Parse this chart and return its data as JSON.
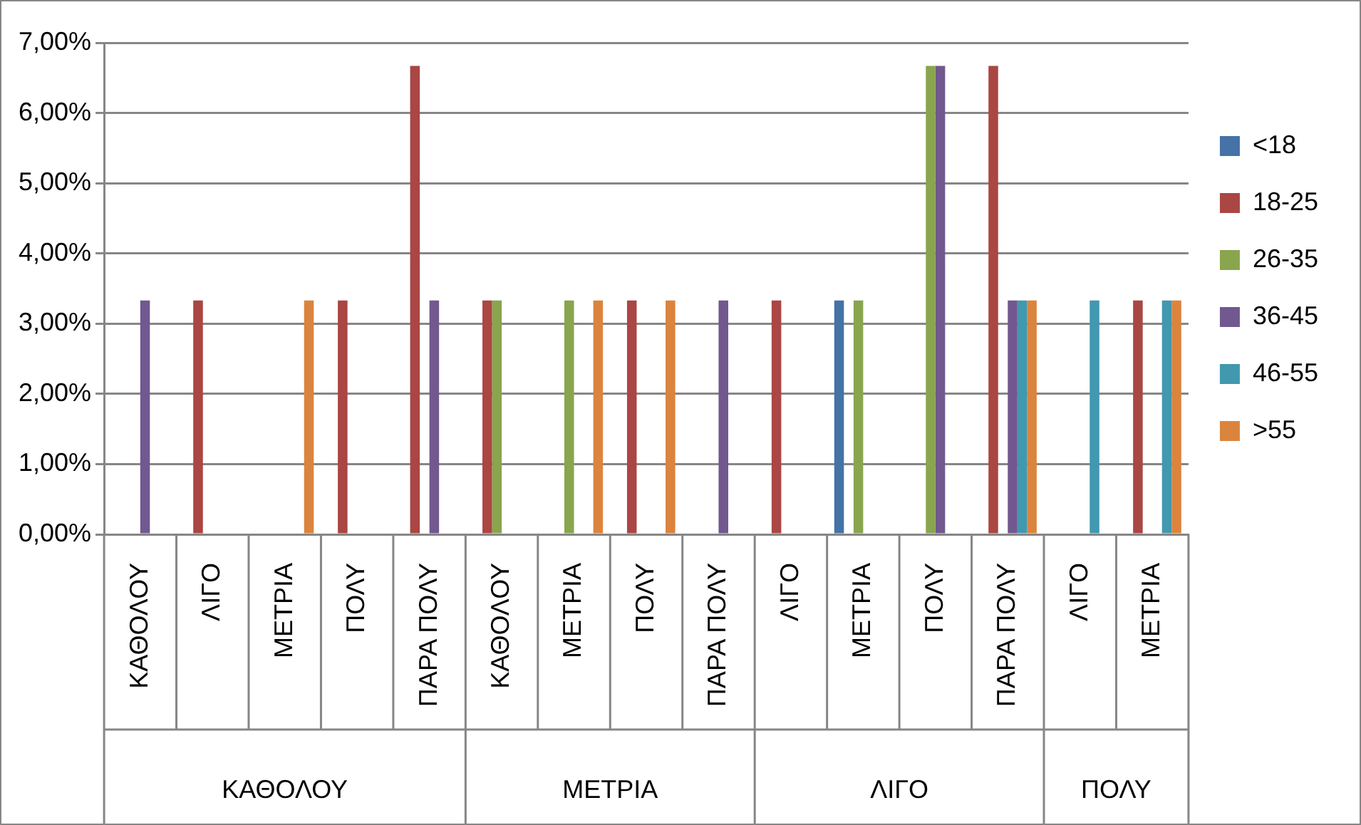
{
  "chart_data": {
    "type": "bar",
    "categories": [
      "ΚΑΘΟΛΟΥ",
      "ΛΙΓΟ",
      "ΜΕΤΡΙΑ",
      "ΠΟΛΥ",
      "ΠΑΡΑ ΠΟΛΥ",
      "ΚΑΘΟΛΟΥ",
      "ΜΕΤΡΙΑ",
      "ΠΟΛΥ",
      "ΠΑΡΑ ΠΟΛΥ",
      "ΛΙΓΟ",
      "ΜΕΤΡΙΑ",
      "ΠΟΛΥ",
      "ΠΑΡΑ ΠΟΛΥ",
      "ΛΙΓΟ",
      "ΜΕΤΡΙΑ"
    ],
    "series": [
      {
        "name": "<18",
        "color": "#4572a7",
        "values": [
          0,
          0,
          0,
          0,
          0,
          0,
          0,
          0,
          0,
          0,
          3.33,
          0,
          0,
          0,
          0
        ]
      },
      {
        "name": "18-25",
        "color": "#aa4643",
        "values": [
          0,
          3.33,
          0,
          3.33,
          6.67,
          3.33,
          0,
          3.33,
          0,
          3.33,
          0,
          0,
          6.67,
          0,
          3.33
        ]
      },
      {
        "name": "26-35",
        "color": "#89a54e",
        "values": [
          0,
          0,
          0,
          0,
          0,
          3.33,
          3.33,
          0,
          0,
          0,
          3.33,
          6.67,
          0,
          0,
          0
        ]
      },
      {
        "name": "36-45",
        "color": "#71588f",
        "values": [
          3.33,
          0,
          0,
          0,
          3.33,
          0,
          0,
          0,
          3.33,
          0,
          0,
          6.67,
          3.33,
          0,
          0
        ]
      },
      {
        "name": "46-55",
        "color": "#4198af",
        "values": [
          0,
          0,
          0,
          0,
          0,
          0,
          0,
          0,
          0,
          0,
          0,
          0,
          3.33,
          3.33,
          3.33
        ]
      },
      {
        "name": ">55",
        "color": "#db843d",
        "values": [
          0,
          0,
          3.33,
          0,
          0,
          0,
          3.33,
          3.33,
          0,
          0,
          0,
          0,
          3.33,
          0,
          3.33
        ]
      }
    ],
    "annotations": [
      "ΚΑΘΟΛΟΥ",
      "ΜΕΤΡΙΑ",
      "ΛΙΓΟ",
      "ΠΟΛΥ"
    ],
    "ylim": [
      0,
      7
    ],
    "yticks": [
      {
        "value": 0,
        "label": "0,00%"
      },
      {
        "value": 1,
        "label": "1,00%"
      },
      {
        "value": 2,
        "label": "2,00%"
      },
      {
        "value": 3,
        "label": "3,00%"
      },
      {
        "value": 4,
        "label": "4,00%"
      },
      {
        "value": 5,
        "label": "5,00%"
      },
      {
        "value": 6,
        "label": "6,00%"
      },
      {
        "value": 7,
        "label": "7,00%"
      }
    ],
    "grid": "y",
    "legend": "right"
  }
}
